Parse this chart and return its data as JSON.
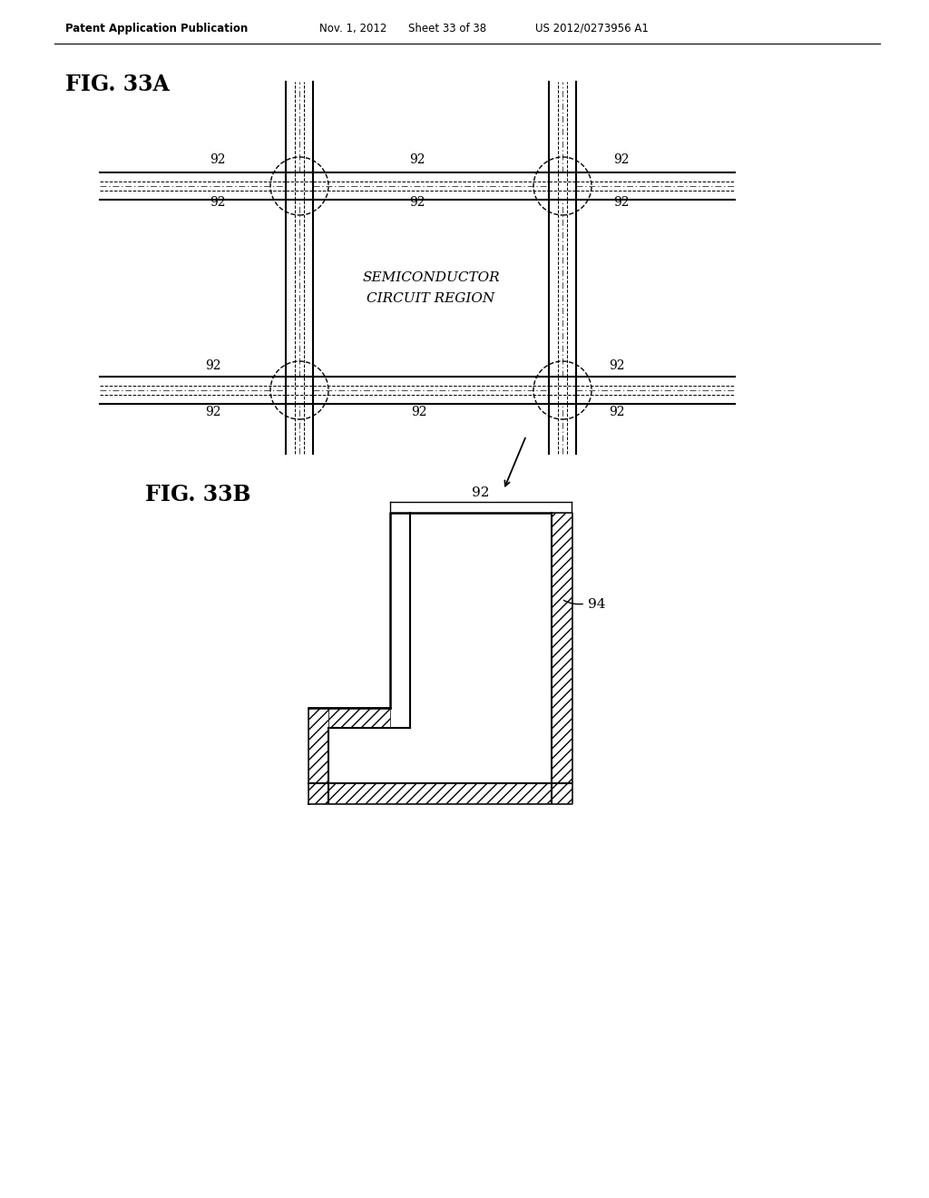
{
  "bg_color": "#ffffff",
  "header_text": "Patent Application Publication",
  "header_date": "Nov. 1, 2012",
  "header_sheet": "Sheet 33 of 38",
  "header_patent": "US 2012/0273956 A1",
  "fig33a_label": "FIG. 33A",
  "fig33b_label": "FIG. 33B",
  "label_92": "92",
  "label_94": "94",
  "region_text": "SEMICONDUCTOR\nCIRCUIT REGION",
  "line_color": "#000000"
}
